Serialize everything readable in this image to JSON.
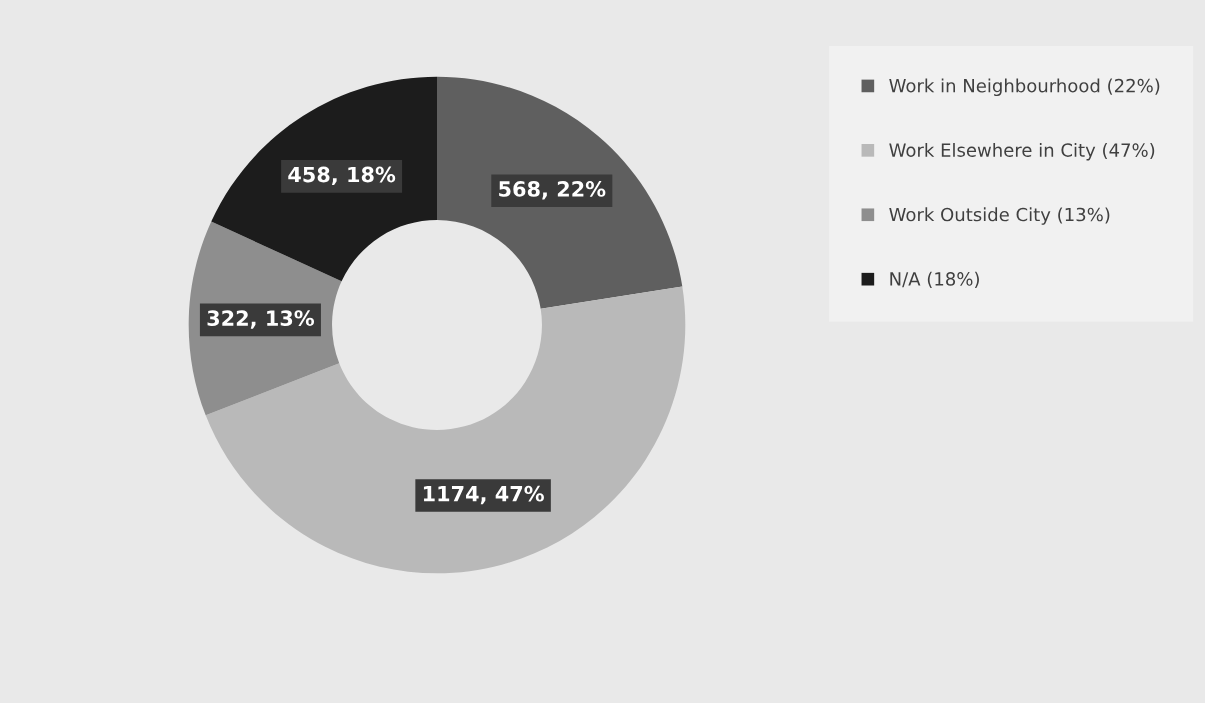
{
  "chart_data": {
    "type": "donut",
    "categories": [
      "Work in Neighbourhood (22%)",
      "Work Elsewhere in City (47%)",
      "Work Outside City (13%)",
      "N/A (18%)"
    ],
    "values": [
      568,
      1174,
      322,
      458
    ],
    "colors": [
      "#5f5f5f",
      "#b9b9b9",
      "#8e8e8e",
      "#1c1c1c"
    ],
    "value_labels": [
      "568, 22%",
      "1174, 47%",
      "322, 13%",
      "458, 18%"
    ],
    "legend": "right"
  }
}
